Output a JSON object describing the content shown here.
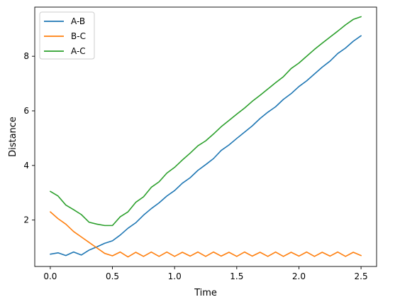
{
  "chart_data": {
    "type": "line",
    "title": "",
    "xlabel": "Time",
    "ylabel": "Distance",
    "xlim": [
      -0.125,
      2.625
    ],
    "ylim": [
      0.3,
      9.8
    ],
    "xticks": [
      0.0,
      0.5,
      1.0,
      1.5,
      2.0,
      2.5
    ],
    "xtick_labels": [
      "0.0",
      "0.5",
      "1.0",
      "1.5",
      "2.0",
      "2.5"
    ],
    "yticks": [
      2,
      4,
      6,
      8
    ],
    "ytick_labels": [
      "2",
      "4",
      "6",
      "8"
    ],
    "grid": false,
    "legend": {
      "placement": "top-left",
      "entries": [
        "A-B",
        "B-C",
        "A-C"
      ]
    },
    "colors": {
      "A-B": "#1f77b4",
      "B-C": "#ff7f0e",
      "A-C": "#2ca02c"
    },
    "x": [
      0.0,
      0.0625,
      0.125,
      0.1875,
      0.25,
      0.3125,
      0.375,
      0.4375,
      0.5,
      0.5625,
      0.625,
      0.6875,
      0.75,
      0.8125,
      0.875,
      0.9375,
      1.0,
      1.0625,
      1.125,
      1.1875,
      1.25,
      1.3125,
      1.375,
      1.4375,
      1.5,
      1.5625,
      1.625,
      1.6875,
      1.75,
      1.8125,
      1.875,
      1.9375,
      2.0,
      2.0625,
      2.125,
      2.1875,
      2.25,
      2.3125,
      2.375,
      2.4375,
      2.5
    ],
    "series": [
      {
        "name": "A-B",
        "values": [
          0.75,
          0.8,
          0.7,
          0.83,
          0.72,
          0.9,
          1.02,
          1.15,
          1.24,
          1.45,
          1.7,
          1.9,
          2.18,
          2.42,
          2.63,
          2.88,
          3.08,
          3.35,
          3.55,
          3.82,
          4.03,
          4.25,
          4.55,
          4.75,
          4.99,
          5.22,
          5.45,
          5.72,
          5.95,
          6.15,
          6.42,
          6.63,
          6.89,
          7.1,
          7.35,
          7.6,
          7.82,
          8.1,
          8.3,
          8.55,
          8.75
        ]
      },
      {
        "name": "B-C",
        "values": [
          2.3,
          2.05,
          1.85,
          1.58,
          1.38,
          1.18,
          0.98,
          0.78,
          0.69,
          0.83,
          0.65,
          0.82,
          0.67,
          0.83,
          0.67,
          0.83,
          0.67,
          0.82,
          0.68,
          0.83,
          0.67,
          0.83,
          0.68,
          0.82,
          0.67,
          0.83,
          0.68,
          0.82,
          0.67,
          0.83,
          0.67,
          0.82,
          0.68,
          0.83,
          0.67,
          0.82,
          0.68,
          0.83,
          0.67,
          0.82,
          0.7
        ]
      },
      {
        "name": "A-C",
        "values": [
          3.05,
          2.88,
          2.55,
          2.38,
          2.2,
          1.92,
          1.85,
          1.8,
          1.8,
          2.12,
          2.3,
          2.65,
          2.85,
          3.2,
          3.4,
          3.72,
          3.93,
          4.2,
          4.45,
          4.72,
          4.9,
          5.15,
          5.42,
          5.65,
          5.88,
          6.1,
          6.35,
          6.57,
          6.8,
          7.03,
          7.25,
          7.55,
          7.75,
          8.0,
          8.25,
          8.48,
          8.7,
          8.92,
          9.15,
          9.35,
          9.45
        ]
      }
    ]
  }
}
